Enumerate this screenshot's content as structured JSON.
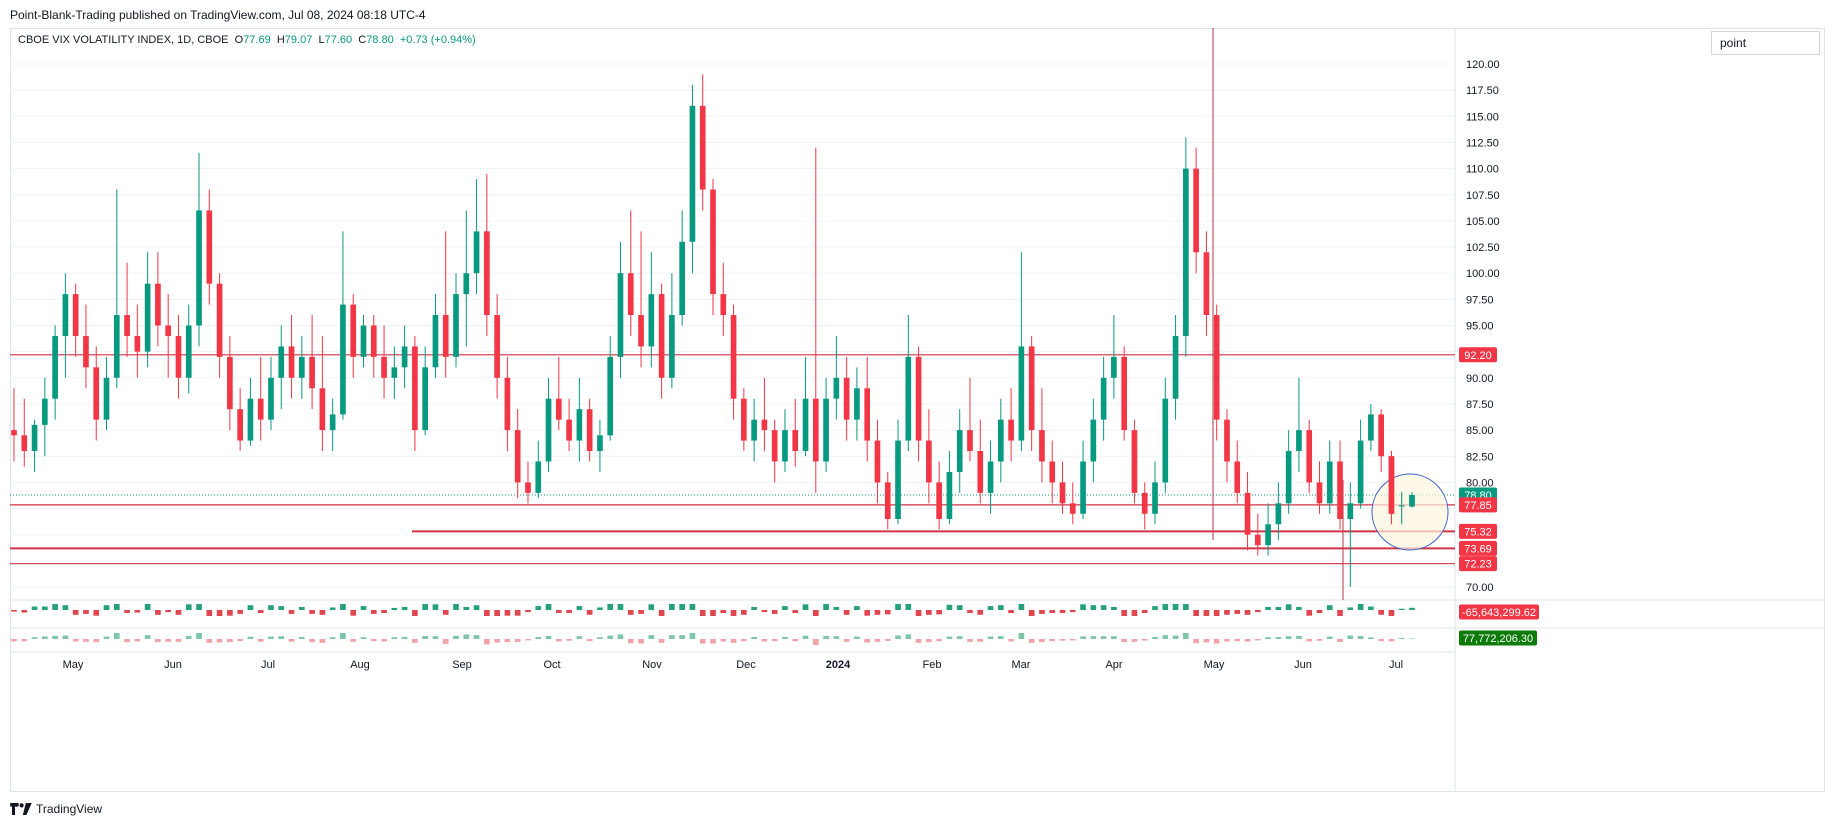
{
  "header": {
    "published": "Point-Blank-Trading published on TradingView.com, Jul 08, 2024 08:18 UTC-4"
  },
  "legend": {
    "symbol": "CBOE VIX VOLATILITY INDEX, 1D, CBOE",
    "o_label": "O",
    "o": "77.69",
    "h_label": "H",
    "h": "79.07",
    "l_label": "L",
    "l": "77.60",
    "c_label": "C",
    "c": "78.80",
    "change": "+0.73 (+0.94%)"
  },
  "unit_button": "point",
  "footer": {
    "brand": "TradingView"
  },
  "colors": {
    "up": "#089981",
    "down": "#f23645",
    "level": "#d03445",
    "grid": "#f0f3fa"
  },
  "chart_data": {
    "type": "candlestick",
    "y_axis": {
      "min": 70.0,
      "max": 120.0,
      "ticks": [
        "120.00",
        "117.50",
        "115.00",
        "112.50",
        "110.00",
        "107.50",
        "105.00",
        "102.50",
        "100.00",
        "97.50",
        "95.00",
        "92.50",
        "90.00",
        "87.50",
        "85.00",
        "82.50",
        "80.00",
        "77.50",
        "75.00",
        "72.50",
        "70.00"
      ]
    },
    "x_axis": {
      "labels": [
        "May",
        "Jun",
        "Jul",
        "Aug",
        "Sep",
        "Oct",
        "Nov",
        "Dec",
        "2024",
        "Feb",
        "Mar",
        "Apr",
        "May",
        "Jun",
        "Jul"
      ]
    },
    "price_labels": [
      {
        "text": "92.20",
        "value": 92.2,
        "color": "#f23645"
      },
      {
        "text": "78.80",
        "value": 78.8,
        "color": "#089981"
      },
      {
        "text": "77.85",
        "value": 77.85,
        "color": "#f23645"
      },
      {
        "text": "75.32",
        "value": 75.32,
        "color": "#f23645"
      },
      {
        "text": "73.69",
        "value": 73.69,
        "color": "#f23645"
      },
      {
        "text": "72.23",
        "value": 72.23,
        "color": "#f23645"
      }
    ],
    "levels": [
      {
        "value": 92.2,
        "from": "start"
      },
      {
        "value": 77.85,
        "from": "start"
      },
      {
        "value": 75.32,
        "from": "Sep"
      },
      {
        "value": 73.69,
        "from": "start"
      },
      {
        "value": 72.23,
        "from": "start"
      }
    ],
    "candles": [
      {
        "o": 85.0,
        "h": 89.0,
        "l": 82.0,
        "c": 84.5
      },
      {
        "o": 84.5,
        "h": 88.0,
        "l": 81.5,
        "c": 83.0
      },
      {
        "o": 83.0,
        "h": 86.0,
        "l": 81.0,
        "c": 85.5
      },
      {
        "o": 85.5,
        "h": 90.0,
        "l": 82.5,
        "c": 88.0
      },
      {
        "o": 88.0,
        "h": 95.0,
        "l": 86.0,
        "c": 94.0
      },
      {
        "o": 94.0,
        "h": 100.0,
        "l": 90.0,
        "c": 98.0
      },
      {
        "o": 98.0,
        "h": 99.0,
        "l": 92.0,
        "c": 94.0
      },
      {
        "o": 94.0,
        "h": 97.0,
        "l": 89.0,
        "c": 91.0
      },
      {
        "o": 91.0,
        "h": 93.0,
        "l": 84.0,
        "c": 86.0
      },
      {
        "o": 86.0,
        "h": 92.0,
        "l": 85.0,
        "c": 90.0
      },
      {
        "o": 90.0,
        "h": 108.0,
        "l": 89.0,
        "c": 96.0
      },
      {
        "o": 96.0,
        "h": 101.0,
        "l": 92.0,
        "c": 94.0
      },
      {
        "o": 94.0,
        "h": 97.0,
        "l": 90.0,
        "c": 92.5
      },
      {
        "o": 92.5,
        "h": 102.0,
        "l": 91.0,
        "c": 99.0
      },
      {
        "o": 99.0,
        "h": 102.0,
        "l": 93.0,
        "c": 95.0
      },
      {
        "o": 95.0,
        "h": 98.0,
        "l": 90.0,
        "c": 94.0
      },
      {
        "o": 94.0,
        "h": 96.0,
        "l": 88.0,
        "c": 90.0
      },
      {
        "o": 90.0,
        "h": 97.0,
        "l": 88.5,
        "c": 95.0
      },
      {
        "o": 95.0,
        "h": 111.5,
        "l": 93.0,
        "c": 106.0
      },
      {
        "o": 106.0,
        "h": 108.0,
        "l": 97.0,
        "c": 99.0
      },
      {
        "o": 99.0,
        "h": 100.0,
        "l": 90.0,
        "c": 92.0
      },
      {
        "o": 92.0,
        "h": 94.0,
        "l": 85.0,
        "c": 87.0
      },
      {
        "o": 87.0,
        "h": 89.0,
        "l": 83.0,
        "c": 84.0
      },
      {
        "o": 84.0,
        "h": 90.0,
        "l": 83.5,
        "c": 88.0
      },
      {
        "o": 88.0,
        "h": 92.0,
        "l": 84.0,
        "c": 86.0
      },
      {
        "o": 86.0,
        "h": 92.0,
        "l": 85.0,
        "c": 90.0
      },
      {
        "o": 90.0,
        "h": 95.0,
        "l": 87.0,
        "c": 93.0
      },
      {
        "o": 93.0,
        "h": 96.0,
        "l": 88.0,
        "c": 90.0
      },
      {
        "o": 90.0,
        "h": 94.0,
        "l": 88.0,
        "c": 92.0
      },
      {
        "o": 92.0,
        "h": 96.0,
        "l": 87.0,
        "c": 89.0
      },
      {
        "o": 89.0,
        "h": 94.0,
        "l": 83.0,
        "c": 85.0
      },
      {
        "o": 85.0,
        "h": 88.0,
        "l": 83.0,
        "c": 86.5
      },
      {
        "o": 86.5,
        "h": 104.0,
        "l": 86.0,
        "c": 97.0
      },
      {
        "o": 97.0,
        "h": 98.0,
        "l": 90.0,
        "c": 92.0
      },
      {
        "o": 92.0,
        "h": 96.0,
        "l": 91.0,
        "c": 95.0
      },
      {
        "o": 95.0,
        "h": 96.0,
        "l": 90.0,
        "c": 92.0
      },
      {
        "o": 92.0,
        "h": 95.0,
        "l": 88.0,
        "c": 90.0
      },
      {
        "o": 90.0,
        "h": 93.0,
        "l": 88.0,
        "c": 91.0
      },
      {
        "o": 91.0,
        "h": 95.0,
        "l": 89.0,
        "c": 93.0
      },
      {
        "o": 93.0,
        "h": 94.0,
        "l": 83.0,
        "c": 85.0
      },
      {
        "o": 85.0,
        "h": 93.0,
        "l": 84.5,
        "c": 91.0
      },
      {
        "o": 91.0,
        "h": 98.0,
        "l": 90.0,
        "c": 96.0
      },
      {
        "o": 96.0,
        "h": 104.0,
        "l": 90.0,
        "c": 92.0
      },
      {
        "o": 92.0,
        "h": 100.0,
        "l": 91.0,
        "c": 98.0
      },
      {
        "o": 98.0,
        "h": 106.0,
        "l": 93.0,
        "c": 100.0
      },
      {
        "o": 100.0,
        "h": 109.0,
        "l": 98.0,
        "c": 104.0
      },
      {
        "o": 104.0,
        "h": 109.5,
        "l": 94.0,
        "c": 96.0
      },
      {
        "o": 96.0,
        "h": 98.0,
        "l": 88.0,
        "c": 90.0
      },
      {
        "o": 90.0,
        "h": 92.0,
        "l": 83.0,
        "c": 85.0
      },
      {
        "o": 85.0,
        "h": 87.0,
        "l": 78.5,
        "c": 80.0
      },
      {
        "o": 80.0,
        "h": 82.0,
        "l": 78.0,
        "c": 79.0
      },
      {
        "o": 79.0,
        "h": 84.0,
        "l": 78.5,
        "c": 82.0
      },
      {
        "o": 82.0,
        "h": 90.0,
        "l": 81.0,
        "c": 88.0
      },
      {
        "o": 88.0,
        "h": 92.0,
        "l": 85.0,
        "c": 86.0
      },
      {
        "o": 86.0,
        "h": 88.0,
        "l": 83.0,
        "c": 84.0
      },
      {
        "o": 84.0,
        "h": 90.0,
        "l": 82.0,
        "c": 87.0
      },
      {
        "o": 87.0,
        "h": 88.0,
        "l": 82.0,
        "c": 83.0
      },
      {
        "o": 83.0,
        "h": 86.0,
        "l": 81.0,
        "c": 84.5
      },
      {
        "o": 84.5,
        "h": 94.0,
        "l": 84.0,
        "c": 92.0
      },
      {
        "o": 92.0,
        "h": 103.0,
        "l": 90.0,
        "c": 100.0
      },
      {
        "o": 100.0,
        "h": 106.0,
        "l": 94.0,
        "c": 96.0
      },
      {
        "o": 96.0,
        "h": 104.0,
        "l": 91.0,
        "c": 93.0
      },
      {
        "o": 93.0,
        "h": 102.0,
        "l": 91.0,
        "c": 98.0
      },
      {
        "o": 98.0,
        "h": 99.0,
        "l": 88.0,
        "c": 90.0
      },
      {
        "o": 90.0,
        "h": 100.0,
        "l": 89.0,
        "c": 96.0
      },
      {
        "o": 96.0,
        "h": 106.0,
        "l": 95.0,
        "c": 103.0
      },
      {
        "o": 103.0,
        "h": 118.0,
        "l": 100.0,
        "c": 116.0
      },
      {
        "o": 116.0,
        "h": 119.0,
        "l": 106.0,
        "c": 108.0
      },
      {
        "o": 108.0,
        "h": 109.0,
        "l": 96.0,
        "c": 98.0
      },
      {
        "o": 98.0,
        "h": 101.0,
        "l": 94.0,
        "c": 96.0
      },
      {
        "o": 96.0,
        "h": 97.0,
        "l": 86.0,
        "c": 88.0
      },
      {
        "o": 88.0,
        "h": 89.0,
        "l": 83.0,
        "c": 84.0
      },
      {
        "o": 84.0,
        "h": 88.0,
        "l": 82.0,
        "c": 86.0
      },
      {
        "o": 86.0,
        "h": 90.0,
        "l": 83.0,
        "c": 85.0
      },
      {
        "o": 85.0,
        "h": 86.0,
        "l": 80.0,
        "c": 82.0
      },
      {
        "o": 82.0,
        "h": 87.0,
        "l": 81.0,
        "c": 85.0
      },
      {
        "o": 85.0,
        "h": 88.0,
        "l": 81.5,
        "c": 83.0
      },
      {
        "o": 83.0,
        "h": 92.0,
        "l": 82.5,
        "c": 88.0
      },
      {
        "o": 88.0,
        "h": 112.0,
        "l": 79.0,
        "c": 82.0
      },
      {
        "o": 82.0,
        "h": 90.0,
        "l": 81.0,
        "c": 88.0
      },
      {
        "o": 88.0,
        "h": 94.0,
        "l": 86.0,
        "c": 90.0
      },
      {
        "o": 90.0,
        "h": 92.0,
        "l": 84.0,
        "c": 86.0
      },
      {
        "o": 86.0,
        "h": 91.0,
        "l": 84.0,
        "c": 89.0
      },
      {
        "o": 89.0,
        "h": 92.0,
        "l": 82.0,
        "c": 84.0
      },
      {
        "o": 84.0,
        "h": 86.0,
        "l": 78.0,
        "c": 80.0
      },
      {
        "o": 80.0,
        "h": 81.0,
        "l": 75.5,
        "c": 76.5
      },
      {
        "o": 76.5,
        "h": 86.0,
        "l": 76.0,
        "c": 84.0
      },
      {
        "o": 84.0,
        "h": 96.0,
        "l": 83.0,
        "c": 92.0
      },
      {
        "o": 92.0,
        "h": 93.0,
        "l": 82.0,
        "c": 84.0
      },
      {
        "o": 84.0,
        "h": 87.0,
        "l": 78.0,
        "c": 80.0
      },
      {
        "o": 80.0,
        "h": 82.0,
        "l": 75.5,
        "c": 76.5
      },
      {
        "o": 76.5,
        "h": 83.0,
        "l": 76.0,
        "c": 81.0
      },
      {
        "o": 81.0,
        "h": 87.0,
        "l": 79.0,
        "c": 85.0
      },
      {
        "o": 85.0,
        "h": 90.0,
        "l": 82.0,
        "c": 83.0
      },
      {
        "o": 83.0,
        "h": 86.0,
        "l": 78.0,
        "c": 79.0
      },
      {
        "o": 79.0,
        "h": 84.0,
        "l": 77.0,
        "c": 82.0
      },
      {
        "o": 82.0,
        "h": 88.0,
        "l": 80.0,
        "c": 86.0
      },
      {
        "o": 86.0,
        "h": 89.0,
        "l": 82.0,
        "c": 84.0
      },
      {
        "o": 84.0,
        "h": 102.0,
        "l": 83.0,
        "c": 93.0
      },
      {
        "o": 93.0,
        "h": 94.0,
        "l": 83.0,
        "c": 85.0
      },
      {
        "o": 85.0,
        "h": 89.0,
        "l": 80.0,
        "c": 82.0
      },
      {
        "o": 82.0,
        "h": 84.0,
        "l": 78.0,
        "c": 80.0
      },
      {
        "o": 80.0,
        "h": 82.0,
        "l": 77.0,
        "c": 78.0
      },
      {
        "o": 78.0,
        "h": 80.0,
        "l": 76.0,
        "c": 77.0
      },
      {
        "o": 77.0,
        "h": 84.0,
        "l": 76.5,
        "c": 82.0
      },
      {
        "o": 82.0,
        "h": 88.0,
        "l": 80.0,
        "c": 86.0
      },
      {
        "o": 86.0,
        "h": 92.0,
        "l": 84.0,
        "c": 90.0
      },
      {
        "o": 90.0,
        "h": 96.0,
        "l": 88.0,
        "c": 92.0
      },
      {
        "o": 92.0,
        "h": 93.0,
        "l": 84.0,
        "c": 85.0
      },
      {
        "o": 85.0,
        "h": 86.0,
        "l": 78.0,
        "c": 79.0
      },
      {
        "o": 79.0,
        "h": 80.0,
        "l": 75.5,
        "c": 77.0
      },
      {
        "o": 77.0,
        "h": 82.0,
        "l": 76.0,
        "c": 80.0
      },
      {
        "o": 80.0,
        "h": 90.0,
        "l": 79.0,
        "c": 88.0
      },
      {
        "o": 88.0,
        "h": 96.0,
        "l": 86.0,
        "c": 94.0
      },
      {
        "o": 94.0,
        "h": 113.0,
        "l": 92.0,
        "c": 110.0
      },
      {
        "o": 110.0,
        "h": 112.0,
        "l": 100.0,
        "c": 102.0
      },
      {
        "o": 102.0,
        "h": 104.0,
        "l": 94.0,
        "c": 96.0
      },
      {
        "o": 96.0,
        "h": 97.0,
        "l": 84.0,
        "c": 86.0
      },
      {
        "o": 86.0,
        "h": 87.0,
        "l": 80.0,
        "c": 82.0
      },
      {
        "o": 82.0,
        "h": 84.0,
        "l": 78.0,
        "c": 79.0
      },
      {
        "o": 79.0,
        "h": 81.0,
        "l": 73.5,
        "c": 75.0
      },
      {
        "o": 75.0,
        "h": 77.0,
        "l": 73.0,
        "c": 74.0
      },
      {
        "o": 74.0,
        "h": 78.0,
        "l": 73.0,
        "c": 76.0
      },
      {
        "o": 76.0,
        "h": 80.0,
        "l": 74.5,
        "c": 78.0
      },
      {
        "o": 78.0,
        "h": 85.0,
        "l": 77.0,
        "c": 83.0
      },
      {
        "o": 83.0,
        "h": 90.0,
        "l": 81.0,
        "c": 85.0
      },
      {
        "o": 85.0,
        "h": 86.0,
        "l": 79.0,
        "c": 80.0
      },
      {
        "o": 80.0,
        "h": 82.0,
        "l": 77.0,
        "c": 78.0
      },
      {
        "o": 78.0,
        "h": 84.0,
        "l": 77.0,
        "c": 82.0
      },
      {
        "o": 82.0,
        "h": 84.0,
        "l": 75.5,
        "c": 76.5
      },
      {
        "o": 76.5,
        "h": 80.0,
        "l": 70.0,
        "c": 78.0
      },
      {
        "o": 78.0,
        "h": 86.0,
        "l": 77.5,
        "c": 84.0
      },
      {
        "o": 84.0,
        "h": 87.5,
        "l": 83.0,
        "c": 86.5
      },
      {
        "o": 86.5,
        "h": 87.0,
        "l": 81.0,
        "c": 82.5
      },
      {
        "o": 82.5,
        "h": 83.0,
        "l": 76.0,
        "c": 77.0
      },
      {
        "o": 77.7,
        "h": 79.1,
        "l": 76.0,
        "c": 77.8
      },
      {
        "o": 77.69,
        "h": 79.07,
        "l": 77.6,
        "c": 78.8
      }
    ],
    "volume_label": "-65,643,299.62",
    "volume_label_color": "#f23645",
    "osc_label": "77,772,206.30",
    "osc_label_color": "#0d7a0a",
    "title": "",
    "xlabel": "",
    "ylabel": ""
  }
}
